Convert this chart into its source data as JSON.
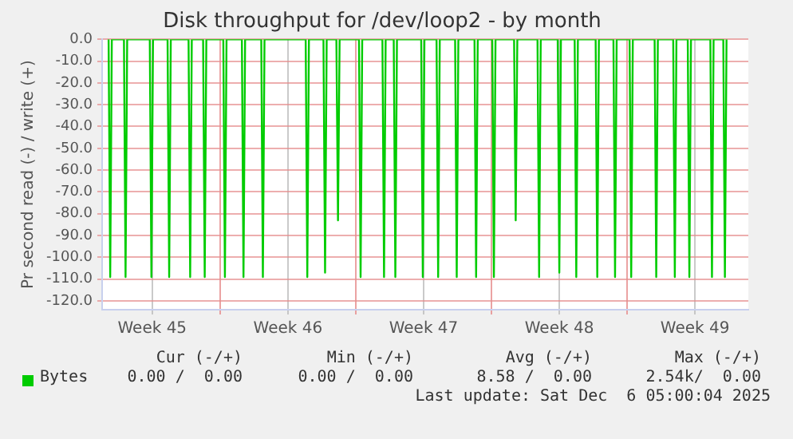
{
  "chart_data": {
    "type": "line",
    "title": "Disk throughput for /dev/loop2 - by month",
    "ylabel": "Pr second read (-) / write (+)",
    "x": [
      "2025-11-03T06:00",
      "2025-11-03T08:00",
      "2025-11-03T10:00",
      "2025-11-04T01:00",
      "2025-11-04T03:00",
      "2025-11-04T05:00",
      "2025-11-05T09:00",
      "2025-11-05T11:00",
      "2025-11-05T13:00",
      "2025-11-06T07:00",
      "2025-11-06T09:00",
      "2025-11-06T11:00",
      "2025-11-07T09:00",
      "2025-11-07T11:00",
      "2025-11-07T13:00",
      "2025-11-08T03:00",
      "2025-11-08T05:00",
      "2025-11-08T07:00",
      "2025-11-09T04:00",
      "2025-11-09T06:00",
      "2025-11-09T08:00",
      "2025-11-10T03:00",
      "2025-11-10T05:00",
      "2025-11-10T07:00",
      "2025-11-11T03:00",
      "2025-11-11T05:00",
      "2025-11-11T07:00",
      "2025-11-13T10:00",
      "2025-11-13T12:00",
      "2025-11-13T14:00",
      "2025-11-14T08:00",
      "2025-11-14T10:00",
      "2025-11-14T12:00",
      "2025-11-15T00:00",
      "2025-11-15T02:00",
      "2025-11-15T04:00",
      "2025-11-16T04:00",
      "2025-11-16T06:00",
      "2025-11-16T08:00",
      "2025-11-17T09:00",
      "2025-11-17T11:00",
      "2025-11-17T13:00",
      "2025-11-17T23:00",
      "2025-11-18T01:00",
      "2025-11-18T03:00",
      "2025-11-19T09:00",
      "2025-11-19T11:00",
      "2025-11-19T13:00",
      "2025-11-20T04:00",
      "2025-11-20T06:00",
      "2025-11-20T08:00",
      "2025-11-21T03:00",
      "2025-11-21T05:00",
      "2025-11-21T07:00",
      "2025-11-22T03:00",
      "2025-11-22T05:00",
      "2025-11-22T07:00",
      "2025-11-23T01:00",
      "2025-11-23T03:00",
      "2025-11-23T05:00",
      "2025-11-24T04:00",
      "2025-11-24T06:00",
      "2025-11-24T08:00",
      "2025-11-25T09:00",
      "2025-11-25T11:00",
      "2025-11-25T13:00",
      "2025-11-26T10:00",
      "2025-11-26T12:00",
      "2025-11-26T14:00",
      "2025-11-27T07:00",
      "2025-11-27T09:00",
      "2025-11-27T11:00",
      "2025-11-28T09:00",
      "2025-11-28T11:00",
      "2025-11-28T13:00",
      "2025-11-29T07:00",
      "2025-11-29T09:00",
      "2025-11-29T11:00",
      "2025-11-30T03:00",
      "2025-11-30T05:00",
      "2025-11-30T07:00",
      "2025-12-01T10:00",
      "2025-12-01T12:00",
      "2025-12-01T14:00",
      "2025-12-02T09:00",
      "2025-12-02T11:00",
      "2025-12-02T13:00",
      "2025-12-03T03:00",
      "2025-12-03T05:00",
      "2025-12-03T07:00",
      "2025-12-04T07:00",
      "2025-12-04T09:00",
      "2025-12-04T11:00",
      "2025-12-04T23:00",
      "2025-12-05T01:00",
      "2025-12-05T03:00"
    ],
    "series": [
      {
        "name": "Bytes",
        "color": "#00cc00",
        "values": [
          0,
          -109,
          0,
          0,
          -109,
          0,
          0,
          -109,
          0,
          0,
          -109,
          0,
          0,
          -109,
          0,
          0,
          -109,
          0,
          0,
          -109,
          0,
          0,
          -109,
          0,
          0,
          -109,
          0,
          0,
          -109,
          0,
          0,
          -107,
          0,
          0,
          -83,
          0,
          0,
          -109,
          0,
          0,
          -109,
          0,
          0,
          -109,
          0,
          0,
          -109,
          0,
          0,
          -109,
          0,
          0,
          -109,
          0,
          0,
          -109,
          0,
          0,
          -109,
          0,
          0,
          -83,
          0,
          0,
          -109,
          0,
          0,
          -107,
          0,
          0,
          -109,
          0,
          0,
          -109,
          0,
          0,
          -109,
          0,
          0,
          -109,
          0,
          0,
          -109,
          0,
          0,
          -109,
          0,
          0,
          -109,
          0,
          0,
          -109,
          0,
          0,
          -109,
          0
        ]
      }
    ],
    "xlim": [
      "2025-11-02T22:00",
      "2025-12-06T06:00"
    ],
    "xticks": [
      {
        "value": "2025-11-05T12:00",
        "label": "Week 45"
      },
      {
        "value": "2025-11-09T00:00",
        "label": null
      },
      {
        "value": "2025-11-12T12:00",
        "label": "Week 46"
      },
      {
        "value": "2025-11-16T00:00",
        "label": null
      },
      {
        "value": "2025-11-19T12:00",
        "label": "Week 47"
      },
      {
        "value": "2025-11-23T00:00",
        "label": null
      },
      {
        "value": "2025-11-26T12:00",
        "label": "Week 48"
      },
      {
        "value": "2025-11-30T00:00",
        "label": null
      },
      {
        "value": "2025-12-03T12:00",
        "label": "Week 49"
      }
    ],
    "ylim": [
      -124,
      0
    ],
    "yticks": [
      {
        "value": 0,
        "label": "0.0"
      },
      {
        "value": -10,
        "label": "-10.0"
      },
      {
        "value": -20,
        "label": "-20.0"
      },
      {
        "value": -30,
        "label": "-30.0"
      },
      {
        "value": -40,
        "label": "-40.0"
      },
      {
        "value": -50,
        "label": "-50.0"
      },
      {
        "value": -60,
        "label": "-60.0"
      },
      {
        "value": -70,
        "label": "-70.0"
      },
      {
        "value": -80,
        "label": "-80.0"
      },
      {
        "value": -90,
        "label": "-90.0"
      },
      {
        "value": -100,
        "label": "-100.0"
      },
      {
        "value": -110,
        "label": "-110.0"
      },
      {
        "value": -120,
        "label": "-120.0"
      }
    ],
    "grid": true,
    "legend": "bottom",
    "marker": "none",
    "line_style": "solid",
    "annotations": [
      "Cur (-/+)",
      "Min (-/+)",
      "Avg (-/+)",
      "Max (-/+)",
      "0.00 /  0.00",
      "0.00 /  0.00",
      "8.58 /  0.00",
      "2.54k/  0.00",
      "Last update: Sat Dec  6 05:00:04 2025"
    ]
  }
}
